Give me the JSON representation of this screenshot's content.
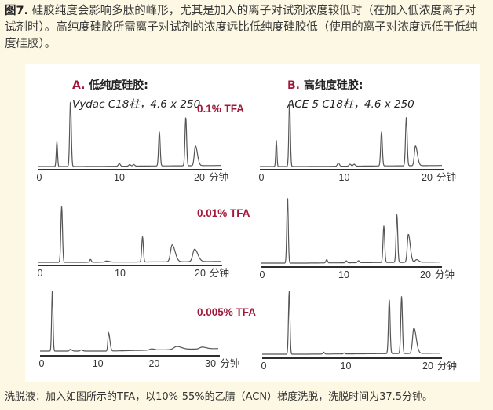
{
  "caption": {
    "label": "图7.",
    "text": "硅胶纯度会影响多肽的峰形，尤其是加入的离子对试剂浓度较低时（在加入低浓度离子对试剂时）。高纯度硅胶所需离子对试剂的浓度远比低纯度硅胶低（使用的离子对浓度远低于低纯度硅胶）。"
  },
  "columns": [
    {
      "letter": "A.",
      "title": "低纯度硅胶:",
      "subtitle": "Vydac C18柱，4.6 x 250"
    },
    {
      "letter": "B.",
      "title": "高纯度硅胶:",
      "subtitle": "ACE 5 C18柱，4.6 x 250"
    }
  ],
  "footer": "洗脱液：加入如图所示的TFA，以10%-55%的乙腈（ACN）梯度洗脱，洗脱时间为37.5分钟。",
  "colors": {
    "accent": "#a0193a",
    "trace": "#555555",
    "axis": "#111111",
    "background": "#fdf8e4"
  },
  "chart_data": [
    {
      "type": "line",
      "column": "A",
      "condition": "0.1% TFA",
      "xunit": "分钟",
      "xticks": [
        "0",
        "10",
        "20"
      ],
      "xlim": [
        0,
        23
      ],
      "peaks": [
        [
          2.2,
          0.38,
          0.08
        ],
        [
          3.9,
          1.0,
          0.1
        ],
        [
          10.0,
          0.04,
          0.12
        ],
        [
          11.3,
          0.025,
          0.12
        ],
        [
          11.8,
          0.025,
          0.12
        ],
        [
          15.0,
          0.52,
          0.1
        ],
        [
          18.3,
          0.74,
          0.1
        ],
        [
          19.5,
          0.3,
          0.14
        ]
      ]
    },
    {
      "type": "line",
      "column": "B",
      "condition": "0.1% TFA",
      "xunit": "分钟",
      "xticks": [
        "0",
        "10",
        "20"
      ],
      "xlim": [
        0,
        22
      ],
      "peaks": [
        [
          1.8,
          0.4,
          0.07
        ],
        [
          3.4,
          1.0,
          0.09
        ],
        [
          9.3,
          0.05,
          0.12
        ],
        [
          10.7,
          0.03,
          0.12
        ],
        [
          11.2,
          0.03,
          0.12
        ],
        [
          14.5,
          0.52,
          0.1
        ],
        [
          17.5,
          0.74,
          0.1
        ],
        [
          18.6,
          0.3,
          0.13
        ]
      ]
    },
    {
      "type": "line",
      "column": "A",
      "condition": "0.01% TFA",
      "xunit": "分钟",
      "xticks": [
        "0",
        "10",
        "20"
      ],
      "xlim": [
        0,
        23
      ],
      "peaks": [
        [
          2.7,
          1.0,
          0.1
        ],
        [
          6.3,
          0.05,
          0.1
        ],
        [
          8.3,
          0.02,
          0.2
        ],
        [
          12.8,
          0.45,
          0.1
        ],
        [
          16.5,
          0.3,
          0.2
        ],
        [
          19.3,
          0.22,
          0.22
        ]
      ]
    },
    {
      "type": "line",
      "column": "B",
      "condition": "0.01% TFA",
      "xunit": "分钟",
      "xticks": [
        "0",
        "10",
        "20"
      ],
      "xlim": [
        0,
        22
      ],
      "peaks": [
        [
          3.1,
          1.0,
          0.09
        ],
        [
          7.9,
          0.05,
          0.1
        ],
        [
          10.3,
          0.03,
          0.1
        ],
        [
          11.8,
          0.03,
          0.12
        ],
        [
          14.9,
          0.55,
          0.1
        ],
        [
          16.5,
          0.72,
          0.1
        ],
        [
          17.9,
          0.42,
          0.13
        ],
        [
          18.9,
          0.04,
          0.15
        ]
      ]
    },
    {
      "type": "line",
      "column": "A",
      "condition": "0.005% TFA",
      "xunit": "分钟",
      "xticks": [
        "0",
        "10",
        "20",
        "30"
      ],
      "xlim": [
        0,
        32
      ],
      "peaks": [
        [
          1.9,
          1.0,
          0.12
        ],
        [
          5.1,
          0.03,
          0.15
        ],
        [
          7.0,
          0.02,
          0.15
        ],
        [
          11.9,
          0.3,
          0.13
        ],
        [
          19.5,
          0.02,
          0.3
        ],
        [
          24.0,
          0.05,
          0.5
        ],
        [
          28.5,
          0.03,
          0.4
        ]
      ]
    },
    {
      "type": "line",
      "column": "B",
      "condition": "0.005% TFA",
      "xunit": "分钟",
      "xticks": [
        "0",
        "10",
        "20"
      ],
      "xlim": [
        0,
        22
      ],
      "peaks": [
        [
          3.1,
          1.0,
          0.09
        ],
        [
          7.3,
          0.03,
          0.1
        ],
        [
          9.8,
          0.015,
          0.1
        ],
        [
          15.3,
          0.85,
          0.1
        ],
        [
          16.8,
          0.9,
          0.1
        ],
        [
          18.3,
          0.4,
          0.16
        ]
      ]
    }
  ]
}
